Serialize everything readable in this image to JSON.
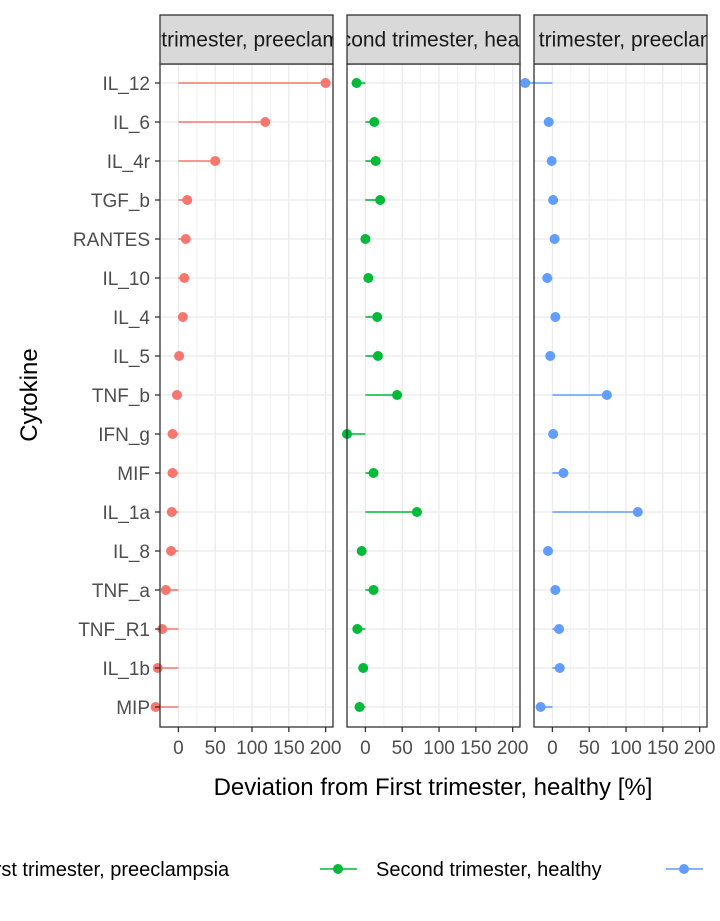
{
  "chart_data": {
    "type": "lollipop",
    "ylabel": "Cytokine",
    "xlabel": "Deviation from First trimester, healthy [%]",
    "xlim": [
      -25,
      210
    ],
    "x_ticks": [
      0,
      50,
      100,
      150,
      200
    ],
    "x_tick_labels": [
      "0",
      "50",
      "100",
      "150",
      "200"
    ],
    "categories": [
      "IL_12",
      "IL_6",
      "IL_4r",
      "TGF_b",
      "RANTES",
      "IL_10",
      "IL_4",
      "IL_5",
      "TNF_b",
      "IFN_g",
      "MIF",
      "IL_1a",
      "IL_8",
      "TNF_a",
      "TNF_R1",
      "IL_1b",
      "MIP"
    ],
    "grid": true,
    "legend_position": "bottom",
    "panels": [
      {
        "strip_label": "First trimester, preeclampsia",
        "color": "#F8766D",
        "values": [
          200,
          118,
          50,
          12,
          10,
          8,
          6,
          1,
          -2,
          -8,
          -8,
          -9,
          -10,
          -17,
          -22,
          -28,
          -31
        ]
      },
      {
        "strip_label": "Second trimester, healthy",
        "color": "#00BA38",
        "values": [
          -12,
          12,
          14,
          20,
          0,
          4,
          16,
          17,
          43,
          -25,
          11,
          70,
          -5,
          11,
          -11,
          -3,
          -8
        ]
      },
      {
        "strip_label": "Third trimester, preeclampsia",
        "color": "#619CFF",
        "values": [
          -37,
          -5,
          -1,
          1,
          3,
          -7,
          4,
          -3,
          74,
          1,
          15,
          116,
          -6,
          4,
          9,
          10,
          -16
        ]
      }
    ]
  }
}
